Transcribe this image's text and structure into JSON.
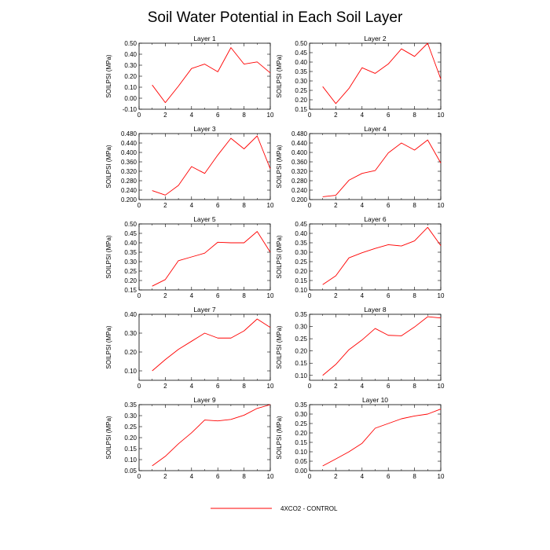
{
  "title": "Soil Water Potential in Each Soil Layer",
  "legend": {
    "label": "4XCO2 - CONTROL",
    "color": "#ff0000",
    "placement": "bottom-center"
  },
  "chart_data": [
    {
      "type": "line",
      "title": "Layer 1",
      "ylabel": "SOILPSI  (MPa)",
      "x": [
        1,
        2,
        3,
        4,
        5,
        6,
        7,
        8,
        9,
        10
      ],
      "xticks": [
        "0",
        "2",
        "4",
        "6",
        "8",
        "10"
      ],
      "xlim": [
        0,
        10
      ],
      "yticks": [
        "-0.10",
        "0.00",
        "0.10",
        "0.20",
        "0.30",
        "0.40",
        "0.50"
      ],
      "ylim": [
        -0.1,
        0.5
      ],
      "series": [
        {
          "name": "4XCO2 - CONTROL",
          "values": [
            0.12,
            -0.04,
            0.11,
            0.27,
            0.31,
            0.24,
            0.46,
            0.31,
            0.33,
            0.23
          ]
        }
      ]
    },
    {
      "type": "line",
      "title": "Layer 2",
      "ylabel": "SOILPSI  (MPa)",
      "x": [
        1,
        2,
        3,
        4,
        5,
        6,
        7,
        8,
        9,
        10
      ],
      "xticks": [
        "0",
        "2",
        "4",
        "6",
        "8",
        "10"
      ],
      "xlim": [
        0,
        10
      ],
      "yticks": [
        "0.15",
        "0.20",
        "0.25",
        "0.30",
        "0.35",
        "0.40",
        "0.45",
        "0.50"
      ],
      "ylim": [
        0.15,
        0.5
      ],
      "series": [
        {
          "name": "4XCO2 - CONTROL",
          "values": [
            0.27,
            0.18,
            0.26,
            0.37,
            0.34,
            0.39,
            0.47,
            0.43,
            0.5,
            0.31
          ]
        }
      ]
    },
    {
      "type": "line",
      "title": "Layer 3",
      "ylabel": "SOILPSI  (MPa)",
      "x": [
        1,
        2,
        3,
        4,
        5,
        6,
        7,
        8,
        9,
        10
      ],
      "xticks": [
        "0",
        "2",
        "4",
        "6",
        "8",
        "10"
      ],
      "xlim": [
        0,
        10
      ],
      "yticks": [
        "0.200",
        "0.240",
        "0.280",
        "0.320",
        "0.360",
        "0.400",
        "0.440",
        "0.480"
      ],
      "ylim": [
        0.2,
        0.48
      ],
      "series": [
        {
          "name": "4XCO2 - CONTROL",
          "values": [
            0.238,
            0.219,
            0.26,
            0.34,
            0.311,
            0.389,
            0.46,
            0.415,
            0.47,
            0.33
          ]
        }
      ]
    },
    {
      "type": "line",
      "title": "Layer 4",
      "ylabel": "SOILPSI  (MPa)",
      "x": [
        1,
        2,
        3,
        4,
        5,
        6,
        7,
        8,
        9,
        10
      ],
      "xticks": [
        "0",
        "2",
        "4",
        "6",
        "8",
        "10"
      ],
      "xlim": [
        0,
        10
      ],
      "yticks": [
        "0.200",
        "0.240",
        "0.280",
        "0.320",
        "0.360",
        "0.400",
        "0.440",
        "0.480"
      ],
      "ylim": [
        0.2,
        0.48
      ],
      "series": [
        {
          "name": "4XCO2 - CONTROL",
          "values": [
            0.212,
            0.218,
            0.282,
            0.311,
            0.323,
            0.398,
            0.44,
            0.41,
            0.453,
            0.355
          ]
        }
      ]
    },
    {
      "type": "line",
      "title": "Layer 5",
      "ylabel": "SOILPSI  (MPa)",
      "x": [
        1,
        2,
        3,
        4,
        5,
        6,
        7,
        8,
        9,
        10
      ],
      "xticks": [
        "0",
        "2",
        "4",
        "6",
        "8",
        "10"
      ],
      "xlim": [
        0,
        10
      ],
      "yticks": [
        "0.15",
        "0.20",
        "0.25",
        "0.30",
        "0.35",
        "0.40",
        "0.45",
        "0.50"
      ],
      "ylim": [
        0.15,
        0.5
      ],
      "series": [
        {
          "name": "4XCO2 - CONTROL",
          "values": [
            0.17,
            0.205,
            0.305,
            0.325,
            0.345,
            0.403,
            0.4,
            0.4,
            0.46,
            0.35
          ]
        }
      ]
    },
    {
      "type": "line",
      "title": "Layer 6",
      "ylabel": "SOILPSI  (MPa)",
      "x": [
        1,
        2,
        3,
        4,
        5,
        6,
        7,
        8,
        9,
        10
      ],
      "xticks": [
        "0",
        "2",
        "4",
        "6",
        "8",
        "10"
      ],
      "xlim": [
        0,
        10
      ],
      "yticks": [
        "0.10",
        "0.15",
        "0.20",
        "0.25",
        "0.30",
        "0.35",
        "0.40",
        "0.45"
      ],
      "ylim": [
        0.1,
        0.45
      ],
      "series": [
        {
          "name": "4XCO2 - CONTROL",
          "values": [
            0.128,
            0.175,
            0.27,
            0.297,
            0.32,
            0.34,
            0.333,
            0.36,
            0.432,
            0.335
          ]
        }
      ]
    },
    {
      "type": "line",
      "title": "Layer 7",
      "ylabel": "SOILPSI  (MPa)",
      "x": [
        1,
        2,
        3,
        4,
        5,
        6,
        7,
        8,
        9,
        10
      ],
      "xticks": [
        "0",
        "2",
        "4",
        "6",
        "8",
        "10"
      ],
      "xlim": [
        0,
        10
      ],
      "yticks": [
        "0.10",
        "0.20",
        "0.30",
        "0.40"
      ],
      "ylim": [
        0.05,
        0.4
      ],
      "series": [
        {
          "name": "4XCO2 - CONTROL",
          "values": [
            0.1,
            0.16,
            0.214,
            0.257,
            0.3,
            0.274,
            0.274,
            0.312,
            0.375,
            0.33
          ]
        }
      ]
    },
    {
      "type": "line",
      "title": "Layer 8",
      "ylabel": "SOILPSI  (MPa)",
      "x": [
        1,
        2,
        3,
        4,
        5,
        6,
        7,
        8,
        9,
        10
      ],
      "xticks": [
        "0",
        "2",
        "4",
        "6",
        "8",
        "10"
      ],
      "xlim": [
        0,
        10
      ],
      "yticks": [
        "0.10",
        "0.15",
        "0.20",
        "0.25",
        "0.30",
        "0.35"
      ],
      "ylim": [
        0.08,
        0.35
      ],
      "series": [
        {
          "name": "4XCO2 - CONTROL",
          "values": [
            0.1,
            0.145,
            0.205,
            0.245,
            0.292,
            0.264,
            0.262,
            0.298,
            0.34,
            0.335
          ]
        }
      ]
    },
    {
      "type": "line",
      "title": "Layer 9",
      "ylabel": "SOILPSI  (MPa)",
      "x": [
        1,
        2,
        3,
        4,
        5,
        6,
        7,
        8,
        9,
        10
      ],
      "xticks": [
        "0",
        "2",
        "4",
        "6",
        "8",
        "10"
      ],
      "xlim": [
        0,
        10
      ],
      "yticks": [
        "0.05",
        "0.10",
        "0.15",
        "0.20",
        "0.25",
        "0.30",
        "0.35"
      ],
      "ylim": [
        0.05,
        0.35
      ],
      "series": [
        {
          "name": "4XCO2 - CONTROL",
          "values": [
            0.072,
            0.115,
            0.172,
            0.222,
            0.28,
            0.276,
            0.283,
            0.302,
            0.333,
            0.35
          ]
        }
      ]
    },
    {
      "type": "line",
      "title": "Layer 10",
      "ylabel": "SOILPSI  (MPa)",
      "x": [
        1,
        2,
        3,
        4,
        5,
        6,
        7,
        8,
        9,
        10
      ],
      "xticks": [
        "0",
        "2",
        "4",
        "6",
        "8",
        "10"
      ],
      "xlim": [
        0,
        10
      ],
      "yticks": [
        "0.00",
        "0.05",
        "0.10",
        "0.15",
        "0.20",
        "0.25",
        "0.30",
        "0.35"
      ],
      "ylim": [
        0.0,
        0.35
      ],
      "series": [
        {
          "name": "4XCO2 - CONTROL",
          "values": [
            0.025,
            0.062,
            0.1,
            0.145,
            0.225,
            0.25,
            0.275,
            0.29,
            0.3,
            0.327
          ]
        }
      ]
    }
  ]
}
